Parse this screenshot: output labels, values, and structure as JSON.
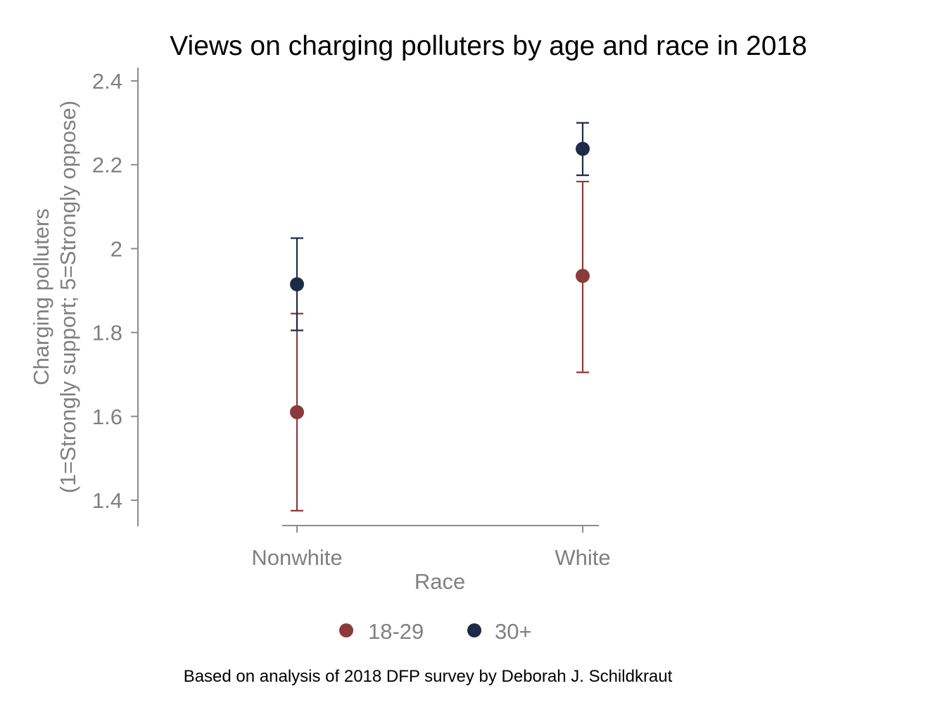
{
  "chart_data": {
    "type": "scatter",
    "title": "Views on charging polluters by age and race in 2018",
    "xlabel": "Race",
    "ylabel": [
      "Charging polluters",
      "(1=Strongly support; 5=Strongly oppose)"
    ],
    "categories": [
      "Nonwhite",
      "White"
    ],
    "ylim": [
      1.35,
      2.43
    ],
    "yticks": [
      1.4,
      1.6,
      1.8,
      2.0,
      2.2,
      2.4
    ],
    "ytick_labels": [
      "1.4",
      "1.6",
      "1.8",
      "2",
      "2.2",
      "2.4"
    ],
    "grid": false,
    "legend_position": "bottom",
    "error_bars": true,
    "series": [
      {
        "name": "18-29",
        "color": "#8b3a3a",
        "values": [
          1.61,
          1.935
        ],
        "ci_low": [
          1.375,
          1.705
        ],
        "ci_high": [
          1.845,
          2.16
        ]
      },
      {
        "name": "30+",
        "color": "#1f2a48",
        "values": [
          1.915,
          2.238
        ],
        "ci_low": [
          1.805,
          2.175
        ],
        "ci_high": [
          2.025,
          2.3
        ]
      }
    ],
    "note": "Based on analysis of 2018 DFP survey by Deborah J. Schildkraut"
  }
}
